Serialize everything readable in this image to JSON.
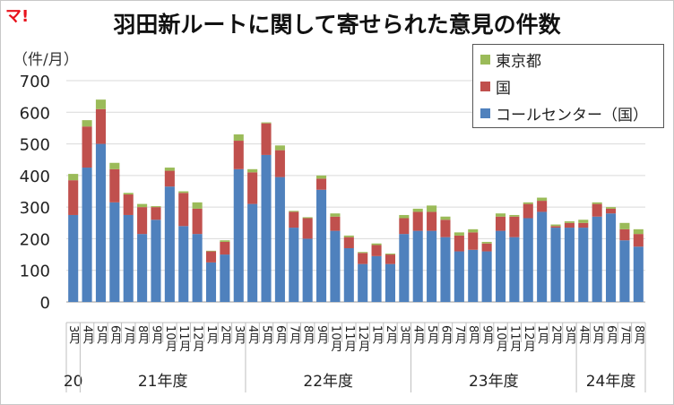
{
  "logo": {
    "text": "マ!"
  },
  "chart_data": {
    "type": "bar",
    "stacked": true,
    "title": "羽田新ルートに関して寄せられた意見の件数",
    "ylabel": "（件/月）",
    "ylim": [
      0,
      700
    ],
    "yticks": [
      0,
      100,
      200,
      300,
      400,
      500,
      600,
      700
    ],
    "grid": true,
    "legend_position": "top-right",
    "categories": [
      "3月",
      "4月",
      "5月",
      "6月",
      "7月",
      "8月",
      "9月",
      "10月",
      "11月",
      "12月",
      "1月",
      "2月",
      "3月",
      "4月",
      "5月",
      "6月",
      "7月",
      "8月",
      "9月",
      "10月",
      "11月",
      "12月",
      "1月",
      "2月",
      "3月",
      "4月",
      "5月",
      "6月",
      "7月",
      "8月",
      "9月",
      "10月",
      "11月",
      "12月",
      "1月",
      "2月",
      "3月",
      "4月",
      "5月",
      "6月",
      "7月",
      "8月"
    ],
    "series": [
      {
        "name": "コールセンター（国）",
        "color": "#4f81bd",
        "values": [
          275,
          425,
          500,
          315,
          275,
          215,
          260,
          365,
          240,
          215,
          125,
          150,
          420,
          310,
          465,
          395,
          235,
          200,
          355,
          225,
          170,
          120,
          145,
          120,
          215,
          225,
          225,
          205,
          160,
          165,
          160,
          225,
          205,
          265,
          285,
          235,
          235,
          235,
          270,
          280,
          195,
          175
        ]
      },
      {
        "name": "国",
        "color": "#c0504d",
        "values": [
          110,
          130,
          110,
          105,
          65,
          85,
          40,
          50,
          105,
          80,
          35,
          40,
          90,
          100,
          100,
          85,
          50,
          65,
          35,
          45,
          35,
          35,
          35,
          30,
          50,
          60,
          60,
          55,
          50,
          55,
          25,
          45,
          65,
          45,
          35,
          5,
          15,
          15,
          40,
          15,
          35,
          40
        ]
      },
      {
        "name": "東京都",
        "color": "#9bbb59",
        "values": [
          20,
          20,
          30,
          20,
          5,
          10,
          3,
          10,
          5,
          20,
          2,
          5,
          20,
          10,
          3,
          15,
          3,
          3,
          10,
          10,
          5,
          3,
          5,
          3,
          10,
          10,
          20,
          10,
          10,
          10,
          5,
          10,
          5,
          5,
          10,
          5,
          5,
          10,
          5,
          5,
          20,
          15
        ]
      }
    ],
    "year_groups": [
      {
        "label": "20",
        "start": 0,
        "count": 1
      },
      {
        "label": "21年度",
        "start": 1,
        "count": 12
      },
      {
        "label": "22年度",
        "start": 13,
        "count": 12
      },
      {
        "label": "23年度",
        "start": 25,
        "count": 12
      },
      {
        "label": "24年度",
        "start": 37,
        "count": 5
      }
    ]
  }
}
